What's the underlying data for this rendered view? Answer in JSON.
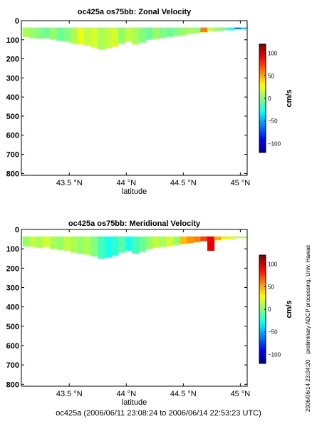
{
  "footer": "oc425a (2006/06/11 23:08:24 to 2006/06/14 22:53:23 UTC)",
  "side_note": {
    "timestamp": "2006/06/14 23:04:20",
    "credit": "preliminary ADCP processing,  Univ. Hawaii"
  },
  "chart_data": [
    {
      "type": "heatmap",
      "title": "oc425a os75bb: Zonal Velocity",
      "xlabel": "latitude",
      "ylabel": "",
      "xlim": [
        43.08,
        45.06
      ],
      "ylim": [
        810,
        0
      ],
      "y_reversed": true,
      "xticks": [
        43.5,
        44.0,
        44.5,
        45.0
      ],
      "xtick_labels": [
        "43.5 °N",
        "44 °N",
        "44.5 °N",
        "45 °N"
      ],
      "yticks": [
        0,
        100,
        200,
        300,
        400,
        500,
        600,
        700,
        800
      ],
      "ytick_labels": [
        "0",
        "100",
        "200",
        "300",
        "400",
        "500",
        "600",
        "700",
        "800"
      ],
      "colorbar": {
        "label": "cm/s",
        "range": [
          -120,
          120
        ],
        "ticks": [
          -100,
          -50,
          0,
          50,
          100
        ],
        "tick_labels": [
          "−100",
          "−50",
          "0",
          "50",
          "100"
        ]
      },
      "grid": false,
      "cells": [
        {
          "x": 43.12,
          "depth_bottom": 85,
          "value": 10
        },
        {
          "x": 43.18,
          "depth_bottom": 90,
          "value": 5
        },
        {
          "x": 43.24,
          "depth_bottom": 95,
          "value": 0
        },
        {
          "x": 43.3,
          "depth_bottom": 90,
          "value": -5
        },
        {
          "x": 43.36,
          "depth_bottom": 100,
          "value": 5
        },
        {
          "x": 43.42,
          "depth_bottom": 105,
          "value": -5
        },
        {
          "x": 43.48,
          "depth_bottom": 110,
          "value": 0
        },
        {
          "x": 43.54,
          "depth_bottom": 120,
          "value": 10
        },
        {
          "x": 43.6,
          "depth_bottom": 125,
          "value": 25
        },
        {
          "x": 43.66,
          "depth_bottom": 130,
          "value": 15
        },
        {
          "x": 43.72,
          "depth_bottom": 140,
          "value": 20
        },
        {
          "x": 43.78,
          "depth_bottom": 150,
          "value": 10
        },
        {
          "x": 43.84,
          "depth_bottom": 145,
          "value": 15
        },
        {
          "x": 43.9,
          "depth_bottom": 135,
          "value": 20
        },
        {
          "x": 43.96,
          "depth_bottom": 120,
          "value": 5
        },
        {
          "x": 44.02,
          "depth_bottom": 110,
          "value": 15
        },
        {
          "x": 44.08,
          "depth_bottom": 125,
          "value": 10
        },
        {
          "x": 44.14,
          "depth_bottom": 115,
          "value": 0
        },
        {
          "x": 44.2,
          "depth_bottom": 100,
          "value": -5
        },
        {
          "x": 44.26,
          "depth_bottom": 95,
          "value": 5
        },
        {
          "x": 44.32,
          "depth_bottom": 90,
          "value": 0
        },
        {
          "x": 44.38,
          "depth_bottom": 85,
          "value": -5
        },
        {
          "x": 44.44,
          "depth_bottom": 80,
          "value": 0
        },
        {
          "x": 44.5,
          "depth_bottom": 75,
          "value": 5
        },
        {
          "x": 44.56,
          "depth_bottom": 70,
          "value": 10
        },
        {
          "x": 44.62,
          "depth_bottom": 65,
          "value": 5
        },
        {
          "x": 44.68,
          "depth_bottom": 60,
          "value": 60
        },
        {
          "x": 44.74,
          "depth_bottom": 55,
          "value": 15
        },
        {
          "x": 44.8,
          "depth_bottom": 55,
          "value": 5
        },
        {
          "x": 44.86,
          "depth_bottom": 50,
          "value": -5
        },
        {
          "x": 44.92,
          "depth_bottom": 50,
          "value": -20
        },
        {
          "x": 44.98,
          "depth_bottom": 45,
          "value": -60
        },
        {
          "x": 45.03,
          "depth_bottom": 45,
          "value": -40
        }
      ]
    },
    {
      "type": "heatmap",
      "title": "oc425a os75bb: Meridional Velocity",
      "xlabel": "latitude",
      "ylabel": "",
      "xlim": [
        43.08,
        45.06
      ],
      "ylim": [
        810,
        0
      ],
      "y_reversed": true,
      "xticks": [
        43.5,
        44.0,
        44.5,
        45.0
      ],
      "xtick_labels": [
        "43.5 °N",
        "44 °N",
        "44.5 °N",
        "45 °N"
      ],
      "yticks": [
        0,
        100,
        200,
        300,
        400,
        500,
        600,
        700,
        800
      ],
      "ytick_labels": [
        "0",
        "100",
        "200",
        "300",
        "400",
        "500",
        "600",
        "700",
        "800"
      ],
      "colorbar": {
        "label": "cm/s",
        "range": [
          -120,
          120
        ],
        "ticks": [
          -100,
          -50,
          0,
          50,
          100
        ],
        "tick_labels": [
          "−100",
          "−50",
          "0",
          "50",
          "100"
        ]
      },
      "grid": false,
      "cells": [
        {
          "x": 43.12,
          "depth_bottom": 85,
          "value": 5
        },
        {
          "x": 43.18,
          "depth_bottom": 90,
          "value": 15
        },
        {
          "x": 43.24,
          "depth_bottom": 95,
          "value": 10
        },
        {
          "x": 43.3,
          "depth_bottom": 90,
          "value": 20
        },
        {
          "x": 43.36,
          "depth_bottom": 100,
          "value": 10
        },
        {
          "x": 43.42,
          "depth_bottom": 105,
          "value": 5
        },
        {
          "x": 43.48,
          "depth_bottom": 110,
          "value": 15
        },
        {
          "x": 43.54,
          "depth_bottom": 120,
          "value": 10
        },
        {
          "x": 43.6,
          "depth_bottom": 125,
          "value": 5
        },
        {
          "x": 43.66,
          "depth_bottom": 130,
          "value": 10
        },
        {
          "x": 43.72,
          "depth_bottom": 140,
          "value": 0
        },
        {
          "x": 43.78,
          "depth_bottom": 150,
          "value": -15
        },
        {
          "x": 43.84,
          "depth_bottom": 145,
          "value": -25
        },
        {
          "x": 43.9,
          "depth_bottom": 135,
          "value": -20
        },
        {
          "x": 43.96,
          "depth_bottom": 120,
          "value": -10
        },
        {
          "x": 44.02,
          "depth_bottom": 110,
          "value": -25
        },
        {
          "x": 44.08,
          "depth_bottom": 125,
          "value": -15
        },
        {
          "x": 44.14,
          "depth_bottom": 115,
          "value": -5
        },
        {
          "x": 44.2,
          "depth_bottom": 100,
          "value": 5
        },
        {
          "x": 44.26,
          "depth_bottom": 95,
          "value": 15
        },
        {
          "x": 44.32,
          "depth_bottom": 90,
          "value": 10
        },
        {
          "x": 44.38,
          "depth_bottom": 85,
          "value": 20
        },
        {
          "x": 44.44,
          "depth_bottom": 80,
          "value": 5
        },
        {
          "x": 44.5,
          "depth_bottom": 75,
          "value": 45
        },
        {
          "x": 44.56,
          "depth_bottom": 70,
          "value": 55
        },
        {
          "x": 44.62,
          "depth_bottom": 65,
          "value": 60
        },
        {
          "x": 44.68,
          "depth_bottom": 60,
          "value": 75
        },
        {
          "x": 44.74,
          "depth_bottom": 110,
          "value": 95
        },
        {
          "x": 44.8,
          "depth_bottom": 55,
          "value": 50
        },
        {
          "x": 44.86,
          "depth_bottom": 50,
          "value": 35
        },
        {
          "x": 44.92,
          "depth_bottom": 50,
          "value": 20
        },
        {
          "x": 44.98,
          "depth_bottom": 45,
          "value": 15
        },
        {
          "x": 45.03,
          "depth_bottom": 45,
          "value": 10
        }
      ]
    }
  ]
}
